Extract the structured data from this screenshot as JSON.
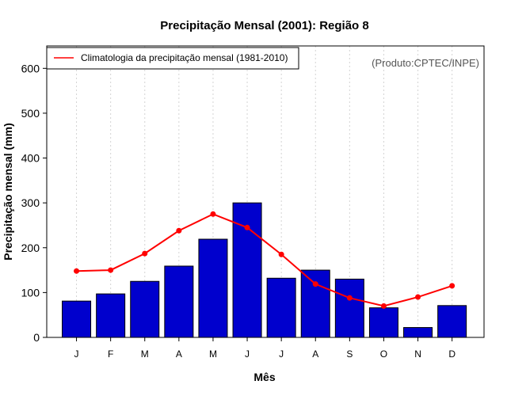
{
  "chart_data": {
    "type": "bar",
    "title": "Precipitação Mensal (2001): Região 8",
    "xlabel": "Mês",
    "ylabel": "Precipitação mensal (mm)",
    "categories": [
      "J",
      "F",
      "M",
      "A",
      "M",
      "J",
      "J",
      "A",
      "S",
      "O",
      "N",
      "D"
    ],
    "ylim": [
      0,
      650
    ],
    "yticks": [
      "0",
      "100",
      "200",
      "300",
      "400",
      "500",
      "600"
    ],
    "grid": "vertical dotted",
    "series": [
      {
        "name": "Precipitação mensal (2001)",
        "type": "bar",
        "color": "#0000cd",
        "values": [
          81,
          97,
          125,
          159,
          219,
          300,
          132,
          150,
          130,
          66,
          22,
          71
        ]
      },
      {
        "name": "Climatologia da precipitação mensal (1981-2010)",
        "type": "line",
        "color": "#ff0000",
        "values": [
          148,
          150,
          187,
          238,
          275,
          245,
          185,
          119,
          88,
          70,
          90,
          115
        ]
      }
    ],
    "legend": {
      "placement": "top-left",
      "entries": [
        "Climatologia da precipitação mensal (1981-2010)"
      ]
    },
    "annotation": "(Produto:CPTEC/INPE)"
  }
}
